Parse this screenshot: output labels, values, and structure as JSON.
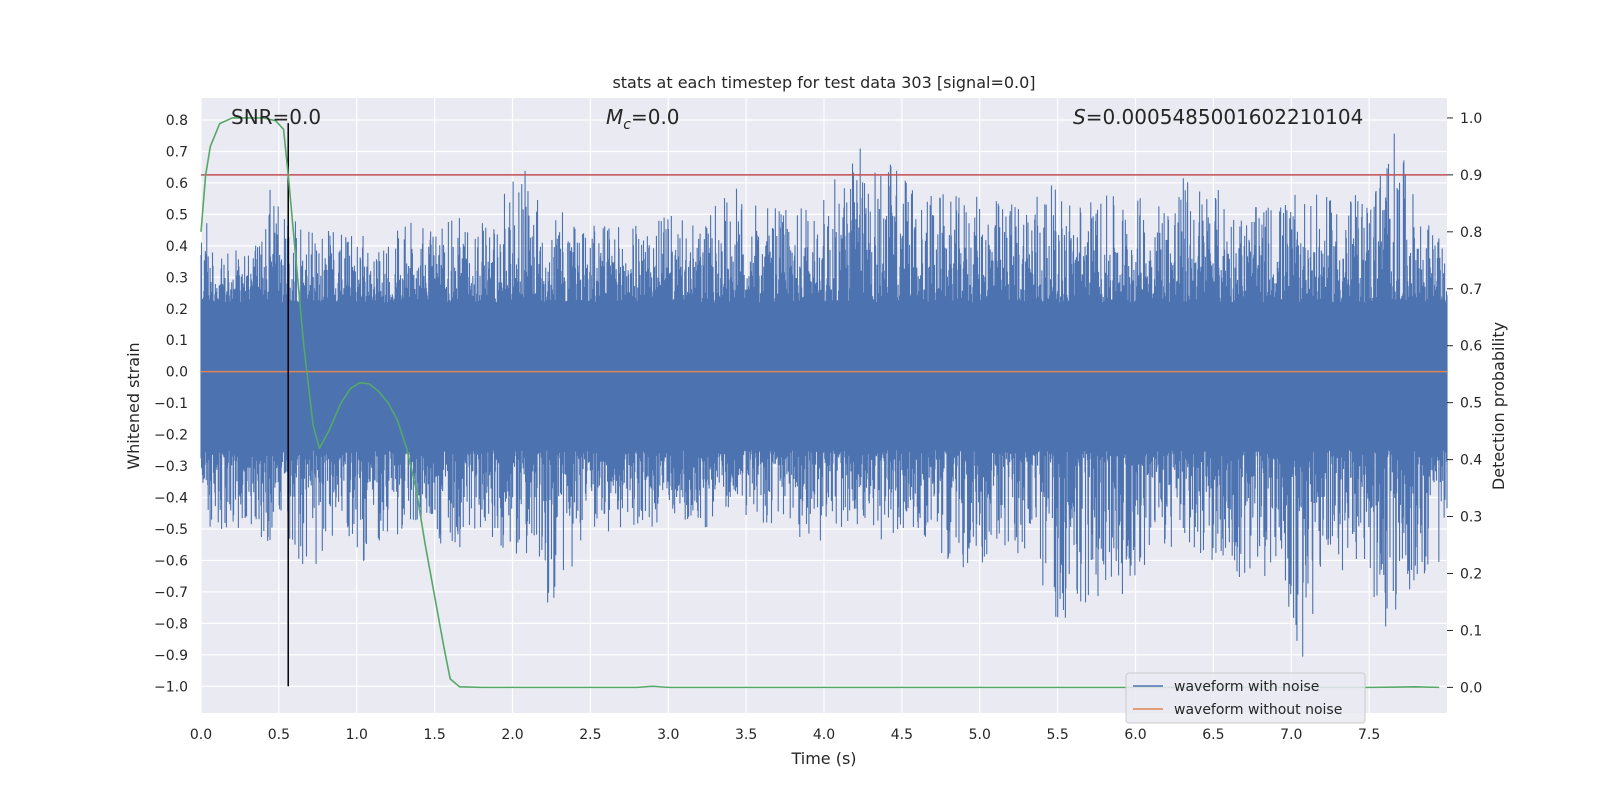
{
  "chart_data": {
    "type": "line",
    "title": "stats at each timestep for test data 303 [signal=0.0]",
    "xlabel": "Time (s)",
    "ylabel": "Whitened strain",
    "y2label": "Detection probability",
    "xlim": [
      0.0,
      8.0
    ],
    "ylim": [
      -1.085,
      0.87
    ],
    "y2lim": [
      -0.045,
      1.035
    ],
    "xticks": [
      0.0,
      0.5,
      1.0,
      1.5,
      2.0,
      2.5,
      3.0,
      3.5,
      4.0,
      4.5,
      5.0,
      5.5,
      6.0,
      6.5,
      7.0,
      7.5
    ],
    "xtick_labels": [
      "0.0",
      "0.5",
      "1.0",
      "1.5",
      "2.0",
      "2.5",
      "3.0",
      "3.5",
      "4.0",
      "4.5",
      "5.0",
      "5.5",
      "6.0",
      "6.5",
      "7.0",
      "7.5"
    ],
    "yticks": [
      0.8,
      0.7,
      0.6,
      0.5,
      0.4,
      0.3,
      0.2,
      0.1,
      0.0,
      -0.1,
      -0.2,
      -0.3,
      -0.4,
      -0.5,
      -0.6,
      -0.7,
      -0.8,
      -0.9,
      -1.0
    ],
    "ytick_labels": [
      "0.8",
      "0.7",
      "0.6",
      "0.5",
      "0.4",
      "0.3",
      "0.2",
      "0.1",
      "0.0",
      "−0.1",
      "−0.2",
      "−0.3",
      "−0.4",
      "−0.5",
      "−0.6",
      "−0.7",
      "−0.8",
      "−0.9",
      "−1.0"
    ],
    "y2ticks": [
      1.0,
      0.9,
      0.8,
      0.7,
      0.6,
      0.5,
      0.4,
      0.3,
      0.2,
      0.1,
      0.0
    ],
    "y2tick_labels": [
      "1.0",
      "0.9",
      "0.8",
      "0.7",
      "0.6",
      "0.5",
      "0.4",
      "0.3",
      "0.2",
      "0.1",
      "0.0"
    ],
    "grid": true,
    "legend_placement": "lower-right",
    "annotations": {
      "snr": "SNR=0.0",
      "mc_symbol": "M",
      "mc_subscript": "c",
      "mc_value": "=0.0",
      "s_symbol": "S",
      "s_value": "=0.0005485001602210104"
    },
    "threshold_line": {
      "y2": 0.9,
      "color": "#c44e52"
    },
    "marker_line": {
      "x": 0.56,
      "y_from": -1.0,
      "y_to": 0.79,
      "color": "#000000"
    },
    "noise_envelope": {
      "pos_points": [
        [
          0.0,
          0.55
        ],
        [
          0.05,
          0.45
        ],
        [
          0.1,
          0.37
        ],
        [
          0.25,
          0.4
        ],
        [
          0.4,
          0.42
        ],
        [
          0.45,
          0.61
        ],
        [
          0.55,
          0.49
        ],
        [
          0.7,
          0.46
        ],
        [
          0.9,
          0.46
        ],
        [
          1.2,
          0.4
        ],
        [
          1.3,
          0.49
        ],
        [
          1.5,
          0.46
        ],
        [
          1.7,
          0.5
        ],
        [
          1.9,
          0.52
        ],
        [
          2.05,
          0.67
        ],
        [
          2.2,
          0.52
        ],
        [
          2.4,
          0.5
        ],
        [
          2.6,
          0.47
        ],
        [
          2.8,
          0.47
        ],
        [
          3.0,
          0.5
        ],
        [
          3.2,
          0.46
        ],
        [
          3.4,
          0.6
        ],
        [
          3.6,
          0.52
        ],
        [
          3.8,
          0.52
        ],
        [
          4.0,
          0.56
        ],
        [
          4.2,
          0.72
        ],
        [
          4.45,
          0.68
        ],
        [
          4.6,
          0.6
        ],
        [
          4.8,
          0.56
        ],
        [
          5.0,
          0.56
        ],
        [
          5.2,
          0.55
        ],
        [
          5.4,
          0.61
        ],
        [
          5.6,
          0.56
        ],
        [
          5.8,
          0.56
        ],
        [
          6.0,
          0.56
        ],
        [
          6.2,
          0.57
        ],
        [
          6.3,
          0.63
        ],
        [
          6.5,
          0.6
        ],
        [
          6.7,
          0.51
        ],
        [
          6.9,
          0.55
        ],
        [
          7.1,
          0.57
        ],
        [
          7.3,
          0.55
        ],
        [
          7.5,
          0.58
        ],
        [
          7.65,
          0.79
        ],
        [
          7.8,
          0.55
        ],
        [
          8.0,
          0.38
        ]
      ],
      "neg_points": [
        [
          0.0,
          -0.45
        ],
        [
          0.1,
          -0.55
        ],
        [
          0.3,
          -0.5
        ],
        [
          0.45,
          -0.55
        ],
        [
          0.6,
          -0.6
        ],
        [
          0.72,
          -0.63
        ],
        [
          0.9,
          -0.48
        ],
        [
          1.02,
          -0.61
        ],
        [
          1.2,
          -0.55
        ],
        [
          1.3,
          -0.5
        ],
        [
          1.45,
          -0.52
        ],
        [
          1.65,
          -0.58
        ],
        [
          1.8,
          -0.5
        ],
        [
          2.1,
          -0.64
        ],
        [
          2.28,
          -0.78
        ],
        [
          2.5,
          -0.52
        ],
        [
          2.7,
          -0.5
        ],
        [
          2.85,
          -0.52
        ],
        [
          3.0,
          -0.45
        ],
        [
          3.2,
          -0.5
        ],
        [
          3.5,
          -0.46
        ],
        [
          3.8,
          -0.52
        ],
        [
          4.0,
          -0.55
        ],
        [
          4.2,
          -0.5
        ],
        [
          4.4,
          -0.55
        ],
        [
          4.6,
          -0.5
        ],
        [
          4.9,
          -0.65
        ],
        [
          5.1,
          -0.58
        ],
        [
          5.3,
          -0.6
        ],
        [
          5.5,
          -0.8
        ],
        [
          5.65,
          -0.78
        ],
        [
          5.8,
          -0.7
        ],
        [
          5.95,
          -0.71
        ],
        [
          6.1,
          -0.58
        ],
        [
          6.3,
          -0.58
        ],
        [
          6.5,
          -0.6
        ],
        [
          6.75,
          -0.73
        ],
        [
          6.9,
          -0.6
        ],
        [
          7.07,
          -0.98
        ],
        [
          7.2,
          -0.62
        ],
        [
          7.45,
          -0.66
        ],
        [
          7.6,
          -0.84
        ],
        [
          7.75,
          -0.7
        ],
        [
          8.0,
          -0.6
        ]
      ]
    },
    "series": [
      {
        "name": "waveform with noise",
        "color": "#4c72b0",
        "axis": "left",
        "style": "dense noise between envelopes"
      },
      {
        "name": "waveform without noise",
        "color": "#dd8452",
        "axis": "left",
        "x": [
          0.0,
          8.0
        ],
        "y": [
          0.0,
          0.0
        ]
      },
      {
        "color": "#55a868",
        "axis": "right",
        "x": [
          0.0,
          0.03,
          0.06,
          0.12,
          0.2,
          0.3,
          0.4,
          0.48,
          0.53,
          0.56,
          0.6,
          0.66,
          0.72,
          0.76,
          0.82,
          0.9,
          0.96,
          1.02,
          1.08,
          1.14,
          1.2,
          1.26,
          1.32,
          1.38,
          1.44,
          1.5,
          1.56,
          1.6,
          1.66,
          1.8,
          2.0,
          2.5,
          2.8,
          2.9,
          3.0,
          3.5,
          4.0,
          5.0,
          6.0,
          7.0,
          7.5,
          7.8,
          7.95
        ],
        "y": [
          0.8,
          0.9,
          0.95,
          0.99,
          1.0,
          1.0,
          1.0,
          0.995,
          0.98,
          0.9,
          0.78,
          0.6,
          0.46,
          0.42,
          0.45,
          0.5,
          0.525,
          0.535,
          0.533,
          0.52,
          0.5,
          0.47,
          0.42,
          0.35,
          0.25,
          0.16,
          0.07,
          0.015,
          0.001,
          0.0,
          0.0,
          0.0,
          0.0,
          0.002,
          0.0,
          0.0,
          0.0,
          0.0,
          0.0,
          0.0,
          0.0,
          0.001,
          0.0
        ]
      }
    ]
  }
}
